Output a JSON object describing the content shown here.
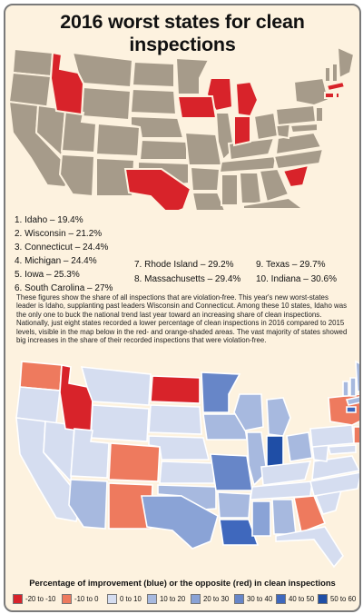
{
  "title": "2016 worst states for clean inspections",
  "rankings": [
    {
      "text": "1. Idaho – 19.4%"
    },
    {
      "text": "2. Wisconsin – 21.2%"
    },
    {
      "text": "3. Connecticut – 24.4%"
    },
    {
      "text": "4. Michigan – 24.4%"
    },
    {
      "text": "5. Iowa – 25.3%"
    },
    {
      "text": "6. South Carolina – 27%"
    },
    {
      "text": "7. Rhode Island – 29.2%"
    },
    {
      "text": "8. Massachusetts – 29.4%"
    },
    {
      "text": "9. Texas – 29.7%"
    },
    {
      "text": "10. Indiana – 30.6%"
    }
  ],
  "description": "These figures show the share of all inspections that are violation-free. This year's new worst-states leader is Idaho, supplanting past leaders Wisconsin and Connecticut. Among these 10 states, Idaho was the only one to buck the national trend last year toward an increasing share of clean inspections. Nationally, just eight states recorded a lower percentage of clean inspections in 2016 compared to 2015 levels, visible in the map below in the red- and orange-shaded areas. The vast majority of states showed big increases in the share of their recorded inspections that were violation-free.",
  "legend": {
    "title": "Percentage of improvement (blue) or the opposite (red) in clean inspections",
    "items": [
      {
        "label": "-20 to -10",
        "color": "#d8232a"
      },
      {
        "label": "-10 to 0",
        "color": "#ee7a5e"
      },
      {
        "label": "0 to 10",
        "color": "#d5ddf0"
      },
      {
        "label": "10 to 20",
        "color": "#a7b9df"
      },
      {
        "label": "20 to 30",
        "color": "#8aa3d6"
      },
      {
        "label": "30 to 40",
        "color": "#6786c8"
      },
      {
        "label": "40 to 50",
        "color": "#3f68bd"
      },
      {
        "label": "50 to 60",
        "color": "#1f4ea6"
      }
    ]
  },
  "colors": {
    "base_state": "#a69b8a",
    "highlight_state": "#d8232a",
    "state_border": "#ffffff",
    "background": "#fdf2df"
  }
}
